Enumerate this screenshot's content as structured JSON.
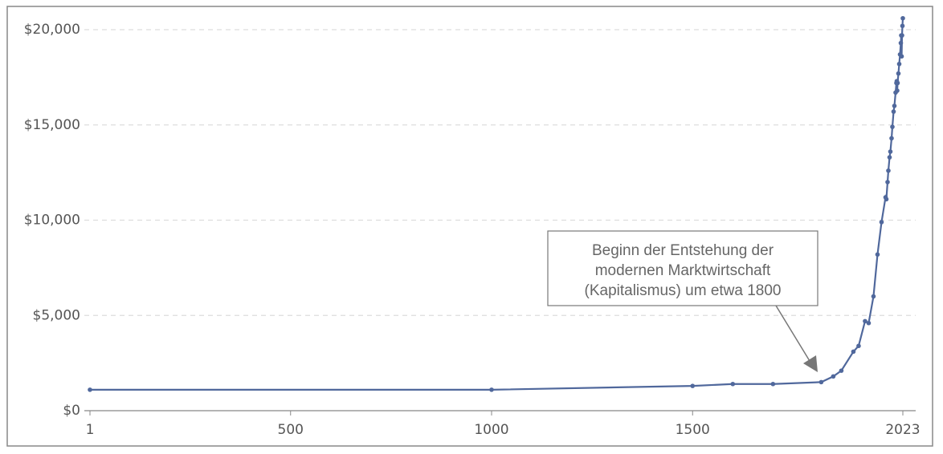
{
  "chart_data": {
    "type": "line",
    "x": [
      1,
      1000,
      1500,
      1600,
      1700,
      1820,
      1850,
      1870,
      1900,
      1913,
      1929,
      1938,
      1950,
      1960,
      1970,
      1980,
      1982,
      1985,
      1987,
      1990,
      1992,
      1995,
      1997,
      2000,
      2002,
      2005,
      2007,
      2008,
      2009,
      2010,
      2012,
      2014,
      2016,
      2018,
      2019,
      2020,
      2021,
      2022,
      2023
    ],
    "series": [
      {
        "color": "#50689c",
        "values": [
          1100,
          1100,
          1300,
          1400,
          1400,
          1500,
          1800,
          2100,
          3100,
          3400,
          4700,
          4600,
          6000,
          8200,
          9900,
          11200,
          11100,
          12000,
          12600,
          13300,
          13600,
          14300,
          14900,
          15700,
          16000,
          16700,
          17200,
          17300,
          16800,
          17200,
          17700,
          18200,
          18700,
          19300,
          19700,
          18600,
          19700,
          20200,
          20600
        ]
      }
    ],
    "xlim": [
      1,
      2023
    ],
    "xticks": [
      1,
      500,
      1000,
      1500,
      2023
    ],
    "ylim": [
      0,
      21000
    ],
    "yticks": [
      {
        "value": 0,
        "label": "$0"
      },
      {
        "value": 5000,
        "label": "$5,000"
      },
      {
        "value": 10000,
        "label": "$10,000"
      },
      {
        "value": 15000,
        "label": "$15,000"
      },
      {
        "value": 20000,
        "label": "$20,000"
      }
    ],
    "grid": true,
    "annotation": [
      "Beginn der Entstehung der",
      "modernen Marktwirtschaft",
      "(Kapitalismus) um etwa 1800"
    ]
  }
}
